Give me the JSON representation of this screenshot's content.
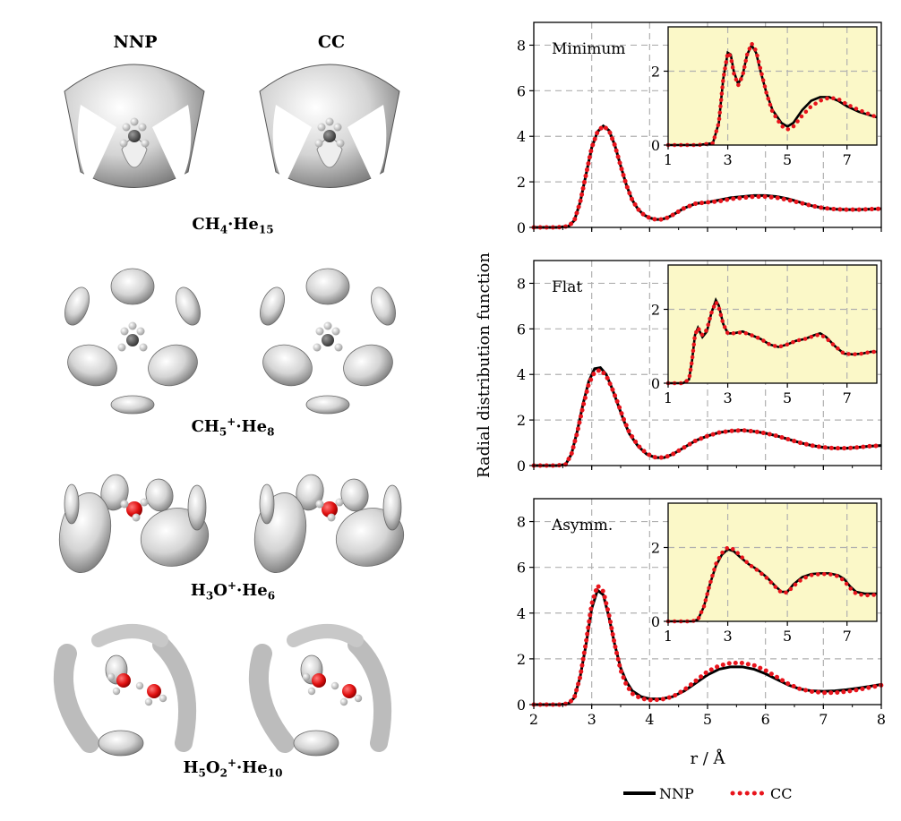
{
  "left": {
    "col_headers": [
      "NNP",
      "CC"
    ],
    "molecules": [
      {
        "base": "CH",
        "sub1": "4",
        "sup1": "",
        "mid": "·He",
        "sub2": "15",
        "render": "CH4"
      },
      {
        "base": "CH",
        "sub1": "5",
        "sup1": "+",
        "mid": "·He",
        "sub2": "8",
        "render": "CH5"
      },
      {
        "base": "H",
        "sub1": "3",
        "tail": "O",
        "sup1": "+",
        "mid": "·He",
        "sub2": "6",
        "render": "H3O"
      },
      {
        "base": "H",
        "sub1": "5",
        "tail": "O",
        "sub_tail": "2",
        "sup1": "+",
        "mid": "·He",
        "sub2": "10",
        "render": "H5O2"
      }
    ]
  },
  "colors": {
    "nnp": "#000000",
    "cc": "#e8141c",
    "inset_bg": "#fbf8c8",
    "grid": "#b0b0b0",
    "he_density": "#d9d9d9",
    "oxygen": "#e01010"
  },
  "chart_data": [
    {
      "type": "line",
      "panel_label": "Minimum",
      "ylabel": "Radial distribution function",
      "xlabel": "r / Å",
      "xlim": [
        2,
        8
      ],
      "ylim": [
        0,
        9
      ],
      "xticks": [
        2,
        3,
        4,
        5,
        6,
        7,
        8
      ],
      "yticks": [
        0,
        2,
        4,
        6,
        8
      ],
      "grid": true,
      "series": [
        {
          "name": "NNP",
          "style": "solid",
          "x": [
            2.0,
            2.4,
            2.6,
            2.7,
            2.8,
            2.9,
            3.0,
            3.1,
            3.2,
            3.3,
            3.4,
            3.5,
            3.6,
            3.7,
            3.8,
            3.9,
            4.0,
            4.1,
            4.2,
            4.3,
            4.4,
            4.6,
            4.8,
            5.0,
            5.2,
            5.4,
            5.6,
            5.8,
            6.0,
            6.2,
            6.4,
            6.6,
            6.8,
            7.0,
            7.2,
            7.4,
            7.6,
            7.8,
            8.0
          ],
          "y": [
            0,
            0,
            0.05,
            0.3,
            1.1,
            2.3,
            3.5,
            4.2,
            4.45,
            4.25,
            3.6,
            2.7,
            1.85,
            1.2,
            0.8,
            0.55,
            0.42,
            0.35,
            0.35,
            0.42,
            0.55,
            0.85,
            1.05,
            1.1,
            1.2,
            1.3,
            1.35,
            1.4,
            1.4,
            1.35,
            1.25,
            1.1,
            0.95,
            0.85,
            0.8,
            0.78,
            0.78,
            0.8,
            0.82
          ]
        },
        {
          "name": "CC",
          "style": "dotted",
          "x": [
            2.0,
            2.4,
            2.6,
            2.7,
            2.8,
            2.9,
            3.0,
            3.1,
            3.2,
            3.3,
            3.4,
            3.5,
            3.6,
            3.7,
            3.8,
            3.9,
            4.0,
            4.1,
            4.2,
            4.3,
            4.4,
            4.6,
            4.8,
            5.0,
            5.2,
            5.4,
            5.6,
            5.8,
            6.0,
            6.2,
            6.4,
            6.6,
            6.8,
            7.0,
            7.2,
            7.4,
            7.6,
            7.8,
            8.0
          ],
          "y": [
            0,
            0,
            0.05,
            0.3,
            1.1,
            2.3,
            3.5,
            4.2,
            4.45,
            4.25,
            3.6,
            2.7,
            1.85,
            1.2,
            0.8,
            0.55,
            0.42,
            0.35,
            0.35,
            0.42,
            0.55,
            0.85,
            1.05,
            1.1,
            1.15,
            1.25,
            1.3,
            1.35,
            1.35,
            1.3,
            1.2,
            1.08,
            0.95,
            0.85,
            0.8,
            0.78,
            0.78,
            0.8,
            0.82
          ]
        }
      ],
      "inset": {
        "xlim": [
          1,
          8
        ],
        "ylim": [
          0,
          3.2
        ],
        "xticks": [
          1,
          3,
          5,
          7
        ],
        "yticks": [
          0,
          2
        ],
        "series": [
          {
            "name": "NNP",
            "style": "solid",
            "x": [
              1.0,
              2.0,
              2.5,
              2.7,
              2.85,
              3.0,
              3.1,
              3.2,
              3.35,
              3.5,
              3.65,
              3.8,
              3.95,
              4.1,
              4.3,
              4.5,
              4.8,
              5.0,
              5.2,
              5.5,
              5.8,
              6.1,
              6.4,
              6.7,
              7.0,
              7.4,
              7.8,
              8.0
            ],
            "y": [
              0,
              0,
              0.05,
              0.6,
              1.8,
              2.5,
              2.45,
              2.0,
              1.65,
              1.9,
              2.45,
              2.7,
              2.5,
              2.0,
              1.4,
              0.95,
              0.6,
              0.5,
              0.6,
              0.95,
              1.2,
              1.3,
              1.3,
              1.2,
              1.05,
              0.9,
              0.8,
              0.75
            ]
          },
          {
            "name": "CC",
            "style": "dotted",
            "x": [
              1.0,
              2.0,
              2.5,
              2.7,
              2.85,
              3.0,
              3.1,
              3.2,
              3.35,
              3.5,
              3.65,
              3.8,
              3.95,
              4.1,
              4.3,
              4.5,
              4.8,
              5.0,
              5.2,
              5.5,
              5.8,
              6.1,
              6.4,
              6.7,
              7.0,
              7.4,
              7.8,
              8.0
            ],
            "y": [
              0,
              0,
              0.05,
              0.6,
              1.8,
              2.5,
              2.4,
              1.95,
              1.62,
              1.88,
              2.45,
              2.75,
              2.55,
              2.05,
              1.4,
              0.9,
              0.52,
              0.42,
              0.5,
              0.8,
              1.05,
              1.2,
              1.28,
              1.25,
              1.1,
              0.95,
              0.82,
              0.75
            ]
          }
        ]
      }
    },
    {
      "type": "line",
      "panel_label": "Flat",
      "xlim": [
        2,
        8
      ],
      "ylim": [
        0,
        9
      ],
      "xticks": [
        2,
        3,
        4,
        5,
        6,
        7,
        8
      ],
      "yticks": [
        0,
        2,
        4,
        6,
        8
      ],
      "grid": true,
      "series": [
        {
          "name": "NNP",
          "style": "solid",
          "x": [
            2.0,
            2.4,
            2.55,
            2.65,
            2.75,
            2.85,
            2.95,
            3.05,
            3.15,
            3.25,
            3.35,
            3.45,
            3.55,
            3.65,
            3.8,
            3.95,
            4.1,
            4.25,
            4.4,
            4.6,
            4.8,
            5.0,
            5.2,
            5.4,
            5.6,
            5.8,
            6.0,
            6.2,
            6.4,
            6.6,
            6.8,
            7.0,
            7.2,
            7.4,
            7.6,
            7.8,
            8.0
          ],
          "y": [
            0,
            0,
            0.05,
            0.5,
            1.5,
            2.7,
            3.7,
            4.25,
            4.3,
            4.0,
            3.4,
            2.7,
            2.0,
            1.4,
            0.85,
            0.5,
            0.35,
            0.35,
            0.5,
            0.8,
            1.1,
            1.3,
            1.45,
            1.52,
            1.55,
            1.5,
            1.42,
            1.3,
            1.15,
            1.0,
            0.88,
            0.8,
            0.76,
            0.76,
            0.8,
            0.85,
            0.88
          ]
        },
        {
          "name": "CC",
          "style": "dotted",
          "x": [
            2.0,
            2.4,
            2.55,
            2.65,
            2.75,
            2.85,
            2.95,
            3.05,
            3.15,
            3.25,
            3.35,
            3.45,
            3.55,
            3.65,
            3.8,
            3.95,
            4.1,
            4.25,
            4.4,
            4.6,
            4.8,
            5.0,
            5.2,
            5.4,
            5.6,
            5.8,
            6.0,
            6.2,
            6.4,
            6.6,
            6.8,
            7.0,
            7.2,
            7.4,
            7.6,
            7.8,
            8.0
          ],
          "y": [
            0,
            0,
            0.05,
            0.5,
            1.45,
            2.6,
            3.6,
            4.1,
            4.2,
            3.95,
            3.4,
            2.75,
            2.05,
            1.45,
            0.88,
            0.52,
            0.36,
            0.35,
            0.5,
            0.8,
            1.1,
            1.3,
            1.45,
            1.52,
            1.55,
            1.5,
            1.42,
            1.3,
            1.15,
            1.0,
            0.88,
            0.8,
            0.76,
            0.76,
            0.8,
            0.85,
            0.88
          ]
        }
      ],
      "inset": {
        "xlim": [
          1,
          8
        ],
        "ylim": [
          0,
          3.2
        ],
        "xticks": [
          1,
          3,
          5,
          7
        ],
        "yticks": [
          0,
          2
        ],
        "series": [
          {
            "name": "NNP",
            "style": "solid",
            "x": [
              1.0,
              1.5,
              1.7,
              1.8,
              1.9,
              2.0,
              2.15,
              2.3,
              2.45,
              2.6,
              2.7,
              2.85,
              3.0,
              3.2,
              3.5,
              3.8,
              4.1,
              4.4,
              4.7,
              5.0,
              5.3,
              5.6,
              5.9,
              6.1,
              6.3,
              6.6,
              6.9,
              7.2,
              7.5,
              7.8,
              8.0
            ],
            "y": [
              0,
              0,
              0.1,
              0.6,
              1.3,
              1.5,
              1.25,
              1.4,
              1.9,
              2.25,
              2.1,
              1.6,
              1.35,
              1.35,
              1.4,
              1.3,
              1.2,
              1.05,
              0.98,
              1.05,
              1.15,
              1.2,
              1.3,
              1.35,
              1.25,
              1.0,
              0.8,
              0.78,
              0.8,
              0.85,
              0.85
            ]
          },
          {
            "name": "CC",
            "style": "dotted",
            "x": [
              1.0,
              1.5,
              1.7,
              1.8,
              1.9,
              2.0,
              2.15,
              2.3,
              2.45,
              2.6,
              2.7,
              2.85,
              3.0,
              3.2,
              3.5,
              3.8,
              4.1,
              4.4,
              4.7,
              5.0,
              5.3,
              5.6,
              5.9,
              6.1,
              6.3,
              6.6,
              6.9,
              7.2,
              7.5,
              7.8,
              8.0
            ],
            "y": [
              0,
              0,
              0.1,
              0.6,
              1.3,
              1.5,
              1.3,
              1.45,
              1.9,
              2.2,
              2.05,
              1.6,
              1.35,
              1.35,
              1.38,
              1.3,
              1.2,
              1.05,
              0.98,
              1.05,
              1.15,
              1.2,
              1.28,
              1.32,
              1.22,
              1.0,
              0.8,
              0.78,
              0.8,
              0.85,
              0.85
            ]
          }
        ]
      }
    },
    {
      "type": "line",
      "panel_label": "Asymm.",
      "xlim": [
        2,
        8
      ],
      "ylim": [
        0,
        9
      ],
      "xticks": [
        2,
        3,
        4,
        5,
        6,
        7,
        8
      ],
      "yticks": [
        0,
        2,
        4,
        6,
        8
      ],
      "grid": true,
      "series": [
        {
          "name": "NNP",
          "style": "solid",
          "x": [
            2.0,
            2.45,
            2.6,
            2.7,
            2.8,
            2.9,
            3.0,
            3.1,
            3.2,
            3.3,
            3.4,
            3.5,
            3.6,
            3.7,
            3.85,
            4.0,
            4.2,
            4.4,
            4.6,
            4.8,
            5.0,
            5.2,
            5.4,
            5.6,
            5.8,
            6.0,
            6.2,
            6.4,
            6.6,
            6.8,
            7.0,
            7.2,
            7.4,
            7.6,
            7.8,
            8.0
          ],
          "y": [
            0,
            0,
            0.05,
            0.3,
            1.2,
            2.6,
            4.2,
            5.0,
            4.8,
            3.8,
            2.6,
            1.6,
            1.0,
            0.6,
            0.35,
            0.25,
            0.25,
            0.35,
            0.6,
            0.95,
            1.3,
            1.55,
            1.65,
            1.65,
            1.55,
            1.35,
            1.1,
            0.85,
            0.68,
            0.6,
            0.58,
            0.6,
            0.65,
            0.72,
            0.8,
            0.88
          ]
        },
        {
          "name": "CC",
          "style": "dotted",
          "x": [
            2.0,
            2.45,
            2.6,
            2.7,
            2.8,
            2.9,
            3.0,
            3.1,
            3.2,
            3.3,
            3.4,
            3.5,
            3.6,
            3.7,
            3.85,
            4.0,
            4.2,
            4.4,
            4.6,
            4.8,
            5.0,
            5.2,
            5.4,
            5.6,
            5.8,
            6.0,
            6.2,
            6.4,
            6.6,
            6.8,
            7.0,
            7.2,
            7.4,
            7.6,
            7.8,
            8.0
          ],
          "y": [
            0,
            0,
            0.05,
            0.3,
            1.2,
            2.7,
            4.4,
            5.2,
            4.95,
            3.9,
            2.6,
            1.5,
            0.85,
            0.48,
            0.27,
            0.2,
            0.22,
            0.35,
            0.65,
            1.05,
            1.45,
            1.7,
            1.82,
            1.82,
            1.72,
            1.5,
            1.2,
            0.9,
            0.68,
            0.57,
            0.52,
            0.52,
            0.57,
            0.65,
            0.75,
            0.85
          ]
        }
      ],
      "inset": {
        "xlim": [
          1,
          8
        ],
        "ylim": [
          0,
          3.2
        ],
        "xticks": [
          1,
          3,
          5,
          7
        ],
        "yticks": [
          0,
          2
        ],
        "series": [
          {
            "name": "NNP",
            "style": "solid",
            "x": [
              1.0,
              1.8,
              2.0,
              2.2,
              2.4,
              2.6,
              2.8,
              3.0,
              3.2,
              3.4,
              3.7,
              4.0,
              4.3,
              4.6,
              4.8,
              5.0,
              5.2,
              5.5,
              5.8,
              6.1,
              6.4,
              6.7,
              6.9,
              7.1,
              7.3,
              7.6,
              8.0
            ],
            "y": [
              0,
              0,
              0.05,
              0.4,
              1.0,
              1.5,
              1.8,
              1.95,
              1.9,
              1.75,
              1.55,
              1.4,
              1.2,
              0.95,
              0.8,
              0.8,
              1.0,
              1.2,
              1.28,
              1.3,
              1.3,
              1.25,
              1.15,
              0.95,
              0.8,
              0.75,
              0.75
            ]
          },
          {
            "name": "CC",
            "style": "dotted",
            "x": [
              1.0,
              1.8,
              2.0,
              2.2,
              2.4,
              2.6,
              2.8,
              3.0,
              3.2,
              3.4,
              3.7,
              4.0,
              4.3,
              4.6,
              4.8,
              5.0,
              5.2,
              5.5,
              5.8,
              6.1,
              6.4,
              6.7,
              6.9,
              7.1,
              7.3,
              7.6,
              8.0
            ],
            "y": [
              0,
              0,
              0.05,
              0.4,
              1.0,
              1.55,
              1.85,
              2.0,
              1.95,
              1.8,
              1.55,
              1.38,
              1.18,
              0.93,
              0.78,
              0.78,
              0.95,
              1.15,
              1.25,
              1.28,
              1.28,
              1.22,
              1.1,
              0.9,
              0.75,
              0.7,
              0.72
            ]
          }
        ]
      }
    }
  ],
  "legend": {
    "items": [
      "NNP",
      "CC"
    ],
    "placement": "bottom"
  }
}
